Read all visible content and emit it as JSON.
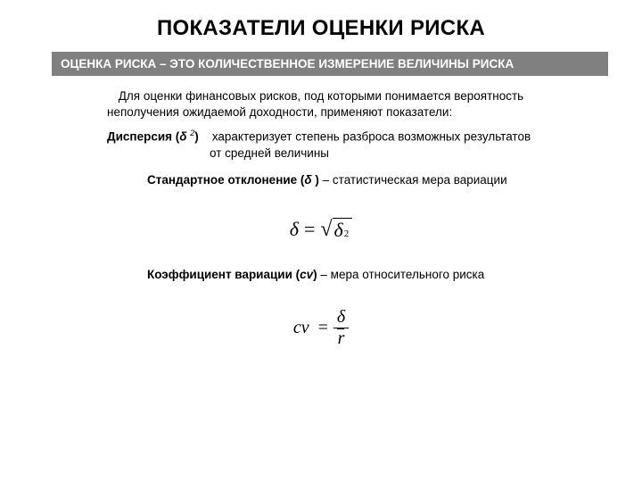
{
  "title": "ПОКАЗАТЕЛИ ОЦЕНКИ РИСКА",
  "banner": "ОЦЕНКА РИСКА – ЭТО КОЛИЧЕСТВЕННОЕ ИЗМЕРЕНИЕ ВЕЛИЧИНЫ РИСКА",
  "intro_line1": "Для оценки финансовых рисков, под которыми понимается вероятность",
  "intro_line2": "неполучения ожидаемой доходности, применяют показатели:",
  "dispersion": {
    "label": "Дисперсия (",
    "symbol": "δ",
    "exp": "2",
    "close": ")",
    "desc1": "характеризует степень разброса возможных результатов",
    "desc2": "от средней величины"
  },
  "stddev": {
    "label": "Стандартное отклонение (",
    "symbol": "δ",
    "close": " )",
    "desc": " – статистическая мера вариации"
  },
  "formula1": {
    "lhs": "δ",
    "eq": "=",
    "radicand_base": "δ",
    "radicand_exp": "2"
  },
  "cv": {
    "label": "Коэффициент вариации (",
    "symbol": "cv",
    "close": ")",
    "desc": " – мера относительного риска"
  },
  "formula2": {
    "lhs": "cv",
    "eq": "=",
    "num": "δ",
    "den": "r"
  },
  "colors": {
    "banner_bg": "#808080",
    "banner_fg": "#ffffff",
    "page_bg": "#ffffff",
    "text": "#000000"
  }
}
